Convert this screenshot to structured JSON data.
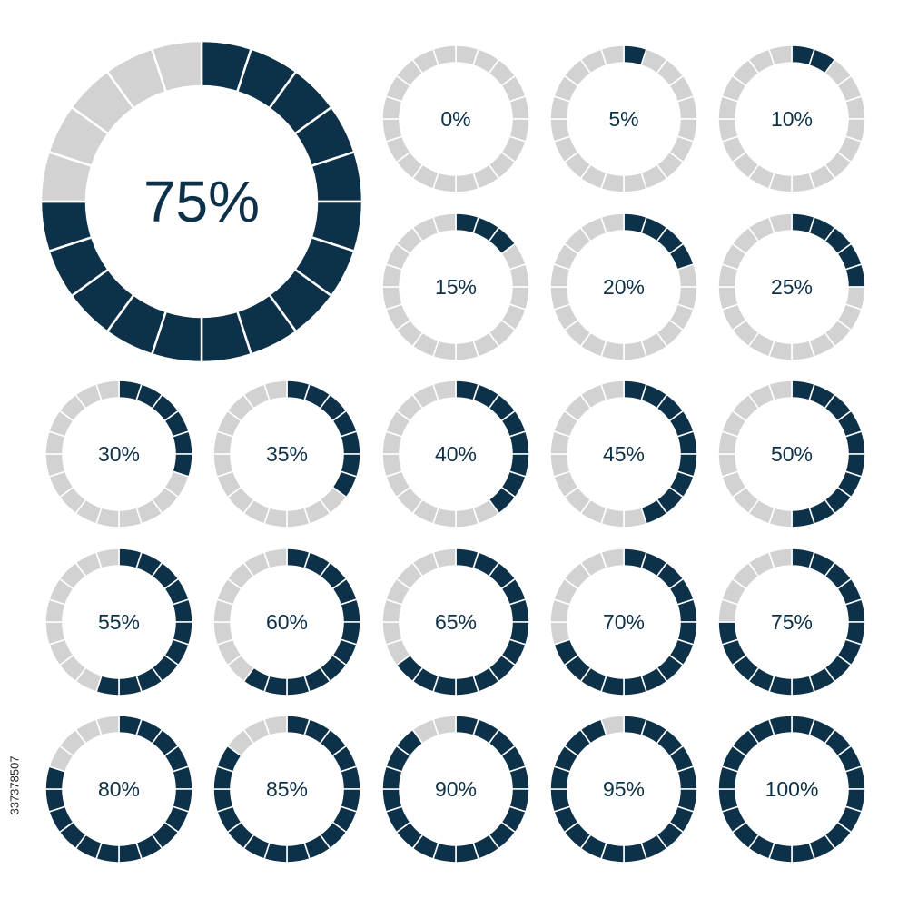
{
  "colors": {
    "filled": "#0c3148",
    "empty": "#d2d2d2",
    "text": "#0c3148",
    "separator": "#ffffff"
  },
  "segments_per_ring": 20,
  "featured": {
    "percent": 75,
    "label": "75%"
  },
  "gauges": [
    {
      "percent": 0,
      "label": "0%"
    },
    {
      "percent": 5,
      "label": "5%"
    },
    {
      "percent": 10,
      "label": "10%"
    },
    {
      "percent": 15,
      "label": "15%"
    },
    {
      "percent": 20,
      "label": "20%"
    },
    {
      "percent": 25,
      "label": "25%"
    },
    {
      "percent": 30,
      "label": "30%"
    },
    {
      "percent": 35,
      "label": "35%"
    },
    {
      "percent": 40,
      "label": "40%"
    },
    {
      "percent": 45,
      "label": "45%"
    },
    {
      "percent": 50,
      "label": "50%"
    },
    {
      "percent": 55,
      "label": "55%"
    },
    {
      "percent": 60,
      "label": "60%"
    },
    {
      "percent": 65,
      "label": "65%"
    },
    {
      "percent": 70,
      "label": "70%"
    },
    {
      "percent": 75,
      "label": "75%"
    },
    {
      "percent": 80,
      "label": "80%"
    },
    {
      "percent": 85,
      "label": "85%"
    },
    {
      "percent": 90,
      "label": "90%"
    },
    {
      "percent": 95,
      "label": "95%"
    },
    {
      "percent": 100,
      "label": "100%"
    }
  ],
  "stock_id": "337378507"
}
